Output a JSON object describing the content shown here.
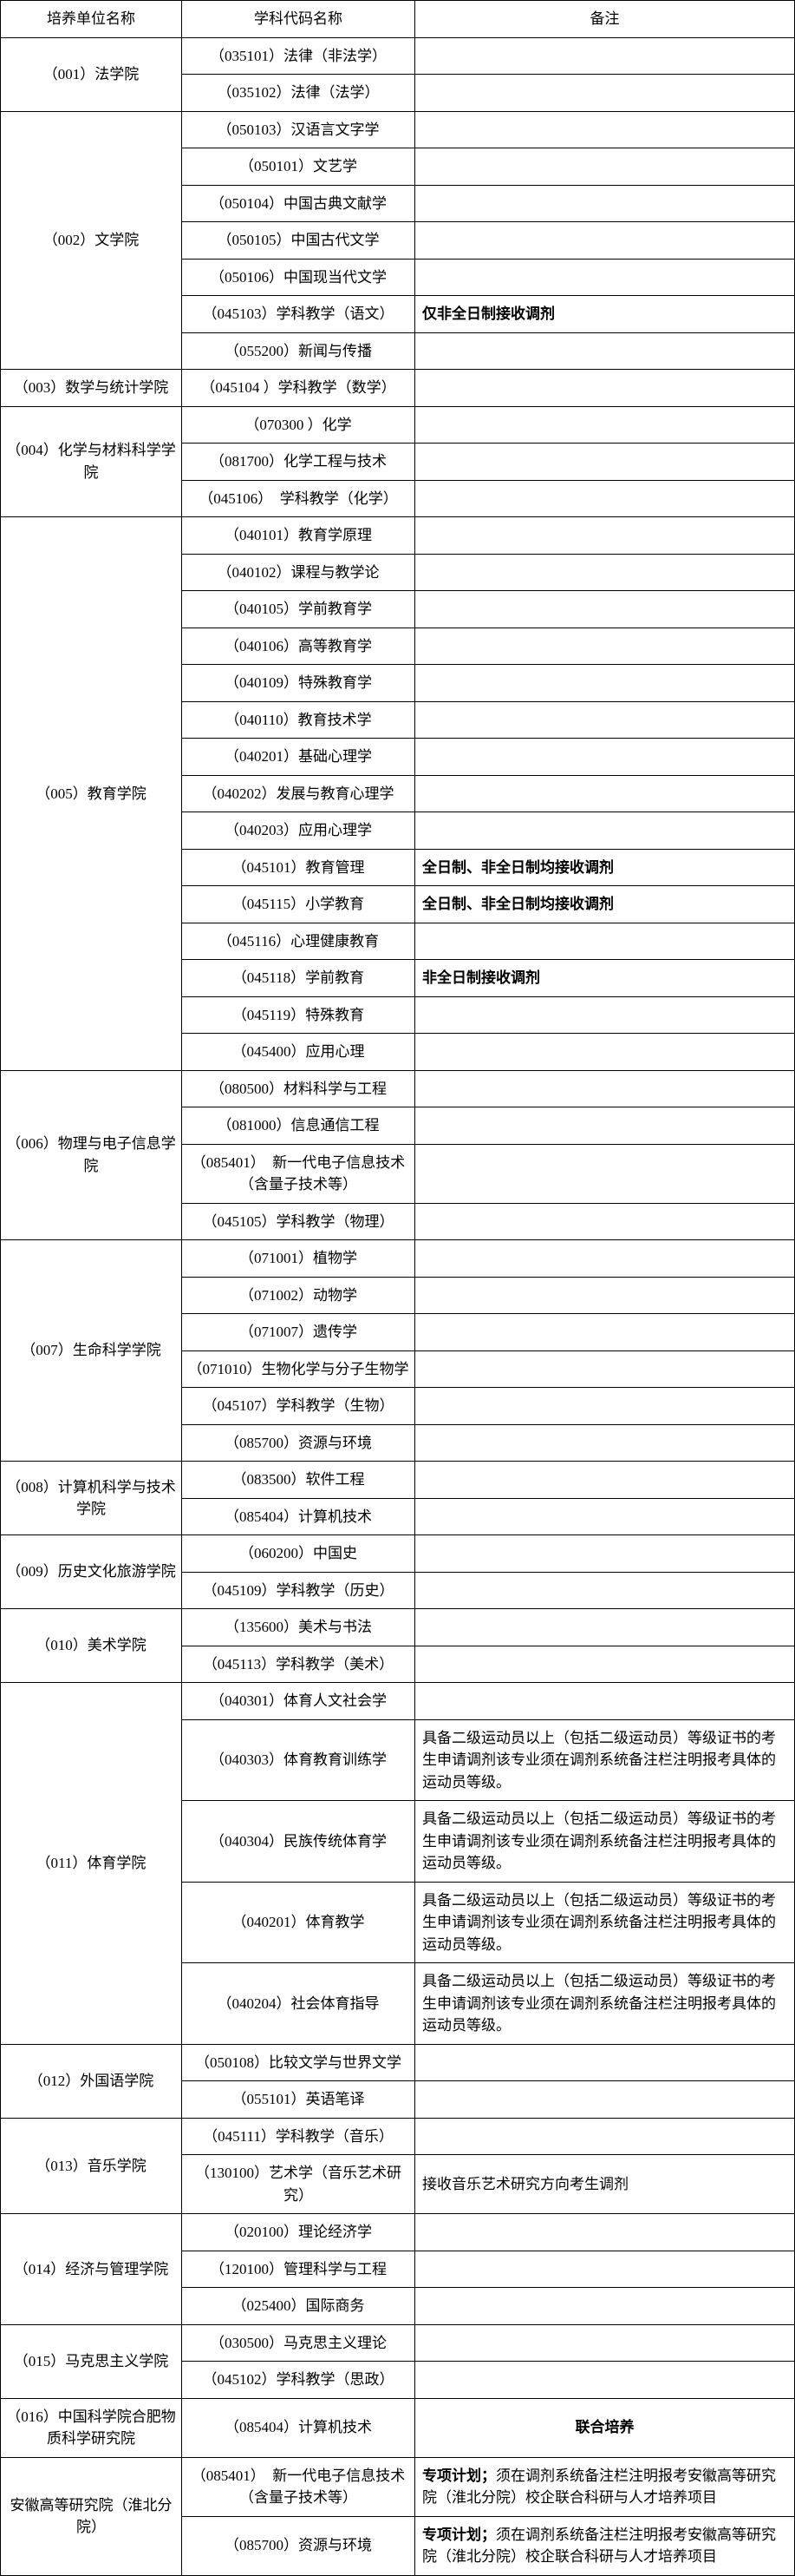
{
  "headers": {
    "col1": "培养单位名称",
    "col2": "学科代码名称",
    "col3": "备注"
  },
  "units": [
    {
      "name": "（001）法学院",
      "subjects": [
        {
          "code": "（035101）法律（非法学）",
          "note": ""
        },
        {
          "code": "（035102）法律（法学）",
          "note": ""
        }
      ]
    },
    {
      "name": "（002）文学院",
      "subjects": [
        {
          "code": "（050103）汉语言文字学",
          "note": ""
        },
        {
          "code": "（050101）文艺学",
          "note": ""
        },
        {
          "code": "（050104）中国古典文献学",
          "note": ""
        },
        {
          "code": "（050105）中国古代文学",
          "note": ""
        },
        {
          "code": "（050106）中国现当代文学",
          "note": ""
        },
        {
          "code": "（045103）学科教学（语文）",
          "note": "仅非全日制接收调剂",
          "bold": true
        },
        {
          "code": "（055200）新闻与传播",
          "note": ""
        }
      ]
    },
    {
      "name": "（003）数学与统计学院",
      "subjects": [
        {
          "code": "（045104 ）学科教学（数学）",
          "note": ""
        }
      ]
    },
    {
      "name": "（004）化学与材料科学学院",
      "subjects": [
        {
          "code": "（070300 ）化学",
          "note": ""
        },
        {
          "code": "（081700）化学工程与技术",
          "note": ""
        },
        {
          "code": "（045106）　学科教学（化学）",
          "note": ""
        }
      ]
    },
    {
      "name": "（005）教育学院",
      "subjects": [
        {
          "code": "（040101）教育学原理",
          "note": ""
        },
        {
          "code": "（040102）课程与教学论",
          "note": ""
        },
        {
          "code": "（040105）学前教育学",
          "note": ""
        },
        {
          "code": "（040106）高等教育学",
          "note": ""
        },
        {
          "code": "（040109）特殊教育学",
          "note": ""
        },
        {
          "code": "（040110）教育技术学",
          "note": ""
        },
        {
          "code": "（040201）基础心理学",
          "note": ""
        },
        {
          "code": "（040202）发展与教育心理学",
          "note": ""
        },
        {
          "code": "（040203）应用心理学",
          "note": ""
        },
        {
          "code": "（045101）教育管理",
          "note": "全日制、非全日制均接收调剂",
          "bold": true
        },
        {
          "code": "（045115）小学教育",
          "note": "全日制、非全日制均接收调剂",
          "bold": true
        },
        {
          "code": "（045116）心理健康教育",
          "note": ""
        },
        {
          "code": "（045118）学前教育",
          "note": "非全日制接收调剂",
          "bold": true
        },
        {
          "code": "（045119）特殊教育",
          "note": ""
        },
        {
          "code": "（045400）应用心理",
          "note": ""
        }
      ]
    },
    {
      "name": "（006）物理与电子信息学院",
      "subjects": [
        {
          "code": "（080500）材料科学与工程",
          "note": ""
        },
        {
          "code": "（081000）信息通信工程",
          "note": ""
        },
        {
          "code": "（085401）　新一代电子信息技术（含量子技术等）",
          "note": ""
        },
        {
          "code": "（045105）学科教学（物理）",
          "note": ""
        }
      ]
    },
    {
      "name": "（007）生命科学学院",
      "subjects": [
        {
          "code": "（071001）植物学",
          "note": ""
        },
        {
          "code": "（071002）动物学",
          "note": ""
        },
        {
          "code": "（071007）遗传学",
          "note": ""
        },
        {
          "code": "（071010）生物化学与分子生物学",
          "note": ""
        },
        {
          "code": "（045107）学科教学（生物）",
          "note": ""
        },
        {
          "code": "（085700）资源与环境",
          "note": ""
        }
      ]
    },
    {
      "name": "（008）计算机科学与技术学院",
      "subjects": [
        {
          "code": "（083500）软件工程",
          "note": ""
        },
        {
          "code": "（085404）计算机技术",
          "note": ""
        }
      ]
    },
    {
      "name": "（009）历史文化旅游学院",
      "subjects": [
        {
          "code": "（060200）中国史",
          "note": ""
        },
        {
          "code": "（045109）学科教学（历史）",
          "note": ""
        }
      ]
    },
    {
      "name": "（010）美术学院",
      "subjects": [
        {
          "code": "（135600）美术与书法",
          "note": ""
        },
        {
          "code": "（045113）学科教学（美术）",
          "note": ""
        }
      ]
    },
    {
      "name": "（011）体育学院",
      "subjects": [
        {
          "code": "（040301）体育人文社会学",
          "note": ""
        },
        {
          "code": "（040303）体育教育训练学",
          "note": "具备二级运动员以上（包括二级运动员）等级证书的考生申请调剂该专业须在调剂系统备注栏注明报考具体的运动员等级。"
        },
        {
          "code": "（040304）民族传统体育学",
          "note": "具备二级运动员以上（包括二级运动员）等级证书的考生申请调剂该专业须在调剂系统备注栏注明报考具体的运动员等级。"
        },
        {
          "code": "（040201）体育教学",
          "note": "具备二级运动员以上（包括二级运动员）等级证书的考生申请调剂该专业须在调剂系统备注栏注明报考具体的运动员等级。"
        },
        {
          "code": "（040204）社会体育指导",
          "note": "具备二级运动员以上（包括二级运动员）等级证书的考生申请调剂该专业须在调剂系统备注栏注明报考具体的运动员等级。"
        }
      ]
    },
    {
      "name": "（012）外国语学院",
      "subjects": [
        {
          "code": "（050108）比较文学与世界文学",
          "note": ""
        },
        {
          "code": "（055101）英语笔译",
          "note": ""
        }
      ]
    },
    {
      "name": "（013）音乐学院",
      "subjects": [
        {
          "code": "（045111）学科教学（音乐）",
          "note": ""
        },
        {
          "code": "（130100）艺术学（音乐艺术研究）",
          "note": "接收音乐艺术研究方向考生调剂"
        }
      ]
    },
    {
      "name": "（014）经济与管理学院",
      "subjects": [
        {
          "code": "（020100）理论经济学",
          "note": ""
        },
        {
          "code": "（120100）管理科学与工程",
          "note": ""
        },
        {
          "code": "（025400）国际商务",
          "note": ""
        }
      ]
    },
    {
      "name": "（015）马克思主义学院",
      "subjects": [
        {
          "code": "（030500）马克思主义理论",
          "note": ""
        },
        {
          "code": "（045102）学科教学（思政）",
          "note": ""
        }
      ]
    },
    {
      "name": "（016）中国科学院合肥物质科学研究院",
      "subjects": [
        {
          "code": "（085404）计算机技术",
          "note": "联合培养",
          "bold": true,
          "centerNote": true
        }
      ]
    },
    {
      "name": "安徽高等研究院（淮北分院）",
      "subjects": [
        {
          "code": "（085401）　新一代电子信息技术（含量子技术等）",
          "note": "专项计划；须在调剂系统备注栏注明报考安徽高等研究院（淮北分院）校企联合科研与人才培养项目",
          "boldPrefix": "专项计划；"
        },
        {
          "code": "（085700）资源与环境",
          "note": "专项计划；须在调剂系统备注栏注明报考安徽高等研究院（淮北分院）校企联合科研与人才培养项目",
          "boldPrefix": "专项计划；"
        }
      ]
    }
  ]
}
